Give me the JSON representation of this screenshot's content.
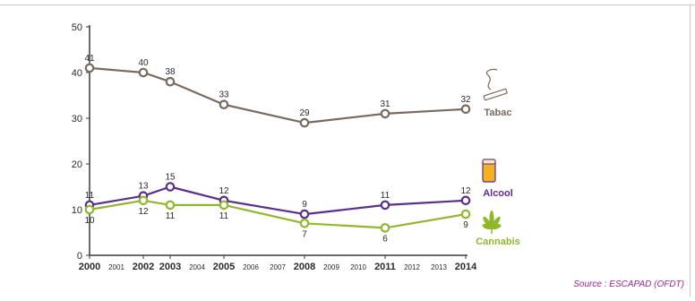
{
  "chart_data": {
    "type": "line",
    "x": [
      2000,
      2002,
      2003,
      2005,
      2008,
      2011,
      2014
    ],
    "xticks_major": [
      "2000",
      "2002",
      "2003",
      "2005",
      "2008",
      "2011",
      "2014"
    ],
    "xticks_minor": [
      "2001",
      "2004",
      "2006",
      "2007",
      "2009",
      "2010",
      "2012",
      "2013"
    ],
    "xlim": [
      2000,
      2014
    ],
    "ylim": [
      0,
      50
    ],
    "yticks": [
      "0",
      "10",
      "20",
      "30",
      "40",
      "50"
    ],
    "grid": false,
    "series": [
      {
        "name": "Tabac",
        "key": "tabac",
        "color": "#7a6a5e",
        "icon": "cigarette-smoke-icon",
        "values": [
          41,
          40,
          38,
          33,
          29,
          31,
          32
        ],
        "labels": [
          "41",
          "40",
          "38",
          "33",
          "29",
          "31",
          "32"
        ],
        "label_position": "above"
      },
      {
        "name": "Alcool",
        "key": "alcool",
        "color": "#5b2d8e",
        "icon": "beer-glass-icon",
        "values": [
          11,
          13,
          15,
          12,
          9,
          11,
          12
        ],
        "labels": [
          "11",
          "13",
          "15",
          "12",
          "9",
          "11",
          "12"
        ],
        "label_position": "above"
      },
      {
        "name": "Cannabis",
        "key": "cannabis",
        "color": "#8fb82a",
        "icon": "cannabis-leaf-icon",
        "values": [
          10,
          12,
          11,
          11,
          7,
          6,
          9
        ],
        "labels": [
          "10",
          "12",
          "11",
          "11",
          "7",
          "6",
          "9"
        ],
        "label_position": "below"
      }
    ],
    "source": "Source : ESCAPAD (OFDT)"
  }
}
